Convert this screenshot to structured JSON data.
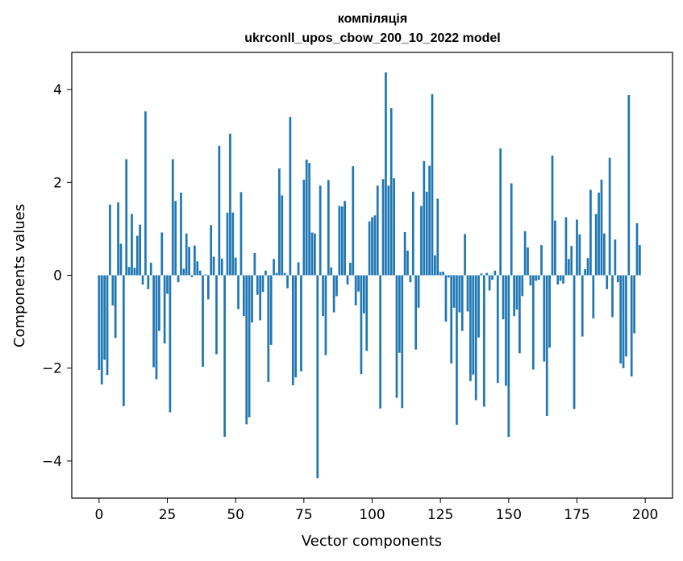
{
  "chart_data": {
    "type": "bar",
    "title_lines": [
      "компіляція",
      "ukrconll_upos_cbow_200_10_2022 model"
    ],
    "xlabel": "Vector components",
    "ylabel": "Components values",
    "xlim": [
      -10,
      210
    ],
    "ylim": [
      -4.8,
      4.8
    ],
    "xticks": [
      0,
      25,
      50,
      75,
      100,
      125,
      150,
      175,
      200
    ],
    "xtick_labels": [
      "0",
      "25",
      "50",
      "75",
      "100",
      "125",
      "150",
      "175",
      "200"
    ],
    "yticks": [
      -4,
      -2,
      0,
      2,
      4
    ],
    "ytick_labels": [
      "−4",
      "−2",
      "0",
      "2",
      "4"
    ],
    "bar_color": "#1f77b4",
    "grid": false,
    "values": [
      -2.04,
      -2.35,
      -1.82,
      -2.15,
      1.52,
      -0.65,
      -1.35,
      1.57,
      0.68,
      -2.82,
      2.5,
      0.18,
      1.32,
      0.16,
      0.85,
      1.09,
      -0.2,
      3.53,
      -0.3,
      0.27,
      -1.98,
      -2.24,
      -1.2,
      0.92,
      -1.47,
      -0.4,
      -2.95,
      2.5,
      1.6,
      -0.15,
      1.78,
      0.14,
      0.9,
      0.61,
      -0.04,
      0.64,
      0.3,
      0.1,
      -1.97,
      0.02,
      -0.52,
      1.08,
      0.4,
      -1.7,
      2.79,
      0.36,
      -3.48,
      1.35,
      3.05,
      1.35,
      0.38,
      -0.73,
      1.79,
      -0.88,
      -3.21,
      -3.06,
      -1.02,
      0.48,
      -0.42,
      -0.97,
      -0.36,
      0.1,
      -2.3,
      -1.5,
      0.35,
      0.05,
      2.3,
      1.72,
      0.05,
      -0.28,
      3.41,
      -2.37,
      -2.2,
      0.28,
      -2.07,
      2.06,
      2.49,
      2.42,
      0.92,
      0.9,
      -4.37,
      1.93,
      -0.88,
      -1.72,
      2.05,
      0.17,
      -0.8,
      -0.45,
      1.49,
      1.48,
      1.6,
      -0.2,
      0.27,
      2.35,
      -0.65,
      -0.35,
      -2.13,
      -0.82,
      -1.63,
      1.16,
      1.25,
      1.29,
      1.93,
      -2.87,
      2.07,
      4.37,
      1.93,
      3.6,
      2.09,
      -2.64,
      -1.67,
      -2.86,
      0.93,
      0.53,
      -0.15,
      1.8,
      -1.6,
      -0.7,
      1.49,
      2.46,
      1.8,
      2.36,
      3.9,
      0.43,
      1.65,
      0.07,
      0.08,
      -1.0,
      -0.05,
      -1.9,
      -0.7,
      -3.22,
      -0.8,
      -1.2,
      0.89,
      -0.78,
      -2.28,
      -2.14,
      -2.69,
      -1.34,
      0.04,
      -2.83,
      0.05,
      -0.33,
      -0.1,
      0.1,
      -2.32,
      2.73,
      -0.95,
      -2.38,
      -3.48,
      1.98,
      -0.88,
      -0.74,
      -1.68,
      -0.45,
      0.95,
      0.6,
      -0.22,
      -2.03,
      -0.12,
      -0.1,
      0.65,
      -1.86,
      -3.03,
      -1.56,
      2.58,
      1.18,
      -0.2,
      -0.12,
      -0.18,
      1.25,
      0.35,
      0.63,
      -2.88,
      1.2,
      0.88,
      -1.32,
      0.13,
      0.37,
      1.84,
      -0.93,
      1.32,
      1.78,
      2.06,
      0.9,
      -0.3,
      2.53,
      -0.9,
      0.77,
      -0.15,
      -1.9,
      -2.0,
      -1.75,
      3.88,
      -2.18,
      -1.25,
      1.12,
      0.65
    ]
  }
}
